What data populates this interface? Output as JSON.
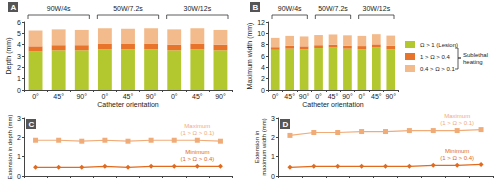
{
  "chart_data": [
    {
      "type": "bar",
      "title": "A",
      "stacked": true,
      "grid": false,
      "xlabel": "Catheter orientation",
      "ylabel": "Depth (mm)",
      "annotations": [
        "90W/4s",
        "50W/7.2s",
        "30W/12s"
      ],
      "categories": [
        "0°",
        "45°",
        "90°",
        "0°",
        "45°",
        "90°",
        "0°",
        "45°",
        "90°"
      ],
      "ylim": [
        0,
        6
      ],
      "yticks": [
        0,
        1,
        2,
        3,
        4,
        5,
        6
      ],
      "series": [
        {
          "name": "Ω > 1 (Lesion)",
          "color": "#b3c82e",
          "values": [
            3.4,
            3.5,
            3.5,
            3.6,
            3.6,
            3.6,
            3.5,
            3.6,
            3.5
          ]
        },
        {
          "name": "1 > Ω > 0.4",
          "color": "#e8732a",
          "values": [
            0.45,
            0.45,
            0.45,
            0.5,
            0.45,
            0.5,
            0.5,
            0.5,
            0.5
          ]
        },
        {
          "name": "0.4 > Ω > 0.1",
          "color": "#f3bb8c",
          "values": [
            1.4,
            1.4,
            1.35,
            1.35,
            1.35,
            1.35,
            1.35,
            1.35,
            1.3
          ]
        }
      ]
    },
    {
      "type": "bar",
      "title": "B",
      "stacked": true,
      "grid": false,
      "legend": "right",
      "legend_bracket_label": "Sublethal\nheating",
      "xlabel": "Catheter orientation",
      "ylabel": "Maximum width (mm)",
      "annotations": [
        "90W/4s",
        "50W/7.2s",
        "30W/12s"
      ],
      "categories": [
        "0°",
        "45°",
        "90°",
        "0°",
        "45°",
        "90°",
        "0°",
        "45°",
        "90°"
      ],
      "ylim": [
        0,
        12
      ],
      "yticks": [
        0,
        2,
        4,
        6,
        8,
        10,
        12
      ],
      "series": [
        {
          "name": "Ω > 1 (Lesion)",
          "color": "#b3c82e",
          "values": [
            7.1,
            7.3,
            7.2,
            7.4,
            7.5,
            7.3,
            7.2,
            7.5,
            7.2
          ]
        },
        {
          "name": "1 > Ω > 0.4",
          "color": "#e8732a",
          "values": [
            0.45,
            0.5,
            0.5,
            0.5,
            0.5,
            0.5,
            0.55,
            0.55,
            0.6
          ]
        },
        {
          "name": "0.4 > Ω > 0.1",
          "color": "#f3bb8c",
          "values": [
            1.65,
            1.75,
            1.75,
            1.8,
            1.8,
            1.85,
            1.8,
            1.8,
            1.8
          ]
        }
      ]
    },
    {
      "type": "line",
      "title": "C",
      "grid": false,
      "tick_labels": "y",
      "ylabel": "Extension in depth (mm)",
      "categories": [
        null,
        null,
        null,
        null,
        null,
        null,
        null,
        null,
        null
      ],
      "ylim": [
        0,
        3
      ],
      "yticks": [
        0,
        1,
        2,
        3
      ],
      "series": [
        {
          "name": "Maximum\n(1 > Ω > 0.1)",
          "color": "#f0ac78",
          "marker": "square",
          "values": [
            1.85,
            1.85,
            1.8,
            1.85,
            1.8,
            1.85,
            1.85,
            1.85,
            1.8
          ]
        },
        {
          "name": "Minimum\n(1 > Ω > 0.4)",
          "color": "#e06a1e",
          "marker": "diamond",
          "values": [
            0.45,
            0.45,
            0.45,
            0.5,
            0.45,
            0.5,
            0.5,
            0.5,
            0.5
          ]
        }
      ]
    },
    {
      "type": "line",
      "title": "D",
      "grid": false,
      "tick_labels": "y",
      "ylabel": "Extension in\nmaximum width (mm)",
      "categories": [
        null,
        null,
        null,
        null,
        null,
        null,
        null,
        null,
        null
      ],
      "ylim": [
        0,
        3
      ],
      "yticks": [
        0,
        1,
        2,
        3
      ],
      "series": [
        {
          "name": "Maximum\n(1 > Ω > 0.1)",
          "color": "#f0ac78",
          "marker": "square",
          "values": [
            2.1,
            2.25,
            2.25,
            2.3,
            2.3,
            2.35,
            2.35,
            2.35,
            2.4
          ]
        },
        {
          "name": "Minimum\n(1 > Ω > 0.4)",
          "color": "#e06a1e",
          "marker": "diamond",
          "values": [
            0.45,
            0.5,
            0.5,
            0.5,
            0.5,
            0.5,
            0.55,
            0.55,
            0.6
          ]
        }
      ]
    }
  ]
}
